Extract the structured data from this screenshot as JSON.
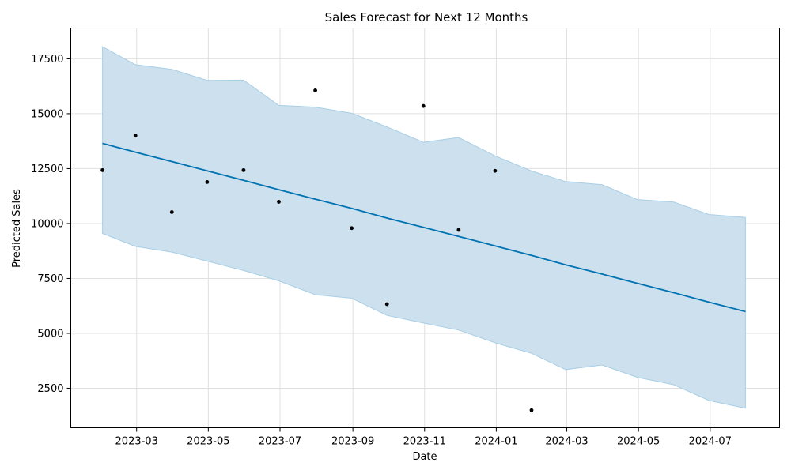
{
  "chart_data": {
    "type": "line",
    "title": "Sales Forecast for Next 12 Months",
    "xlabel": "Date",
    "ylabel": "Predicted Sales",
    "grid": true,
    "x_ticks": [
      "2023-03",
      "2023-05",
      "2023-07",
      "2023-09",
      "2023-11",
      "2024-01",
      "2024-03",
      "2024-05",
      "2024-07"
    ],
    "y_ticks": [
      2500,
      5000,
      7500,
      10000,
      12500,
      15000,
      17500
    ],
    "xlim": [
      "2023-01-04",
      "2024-08-29"
    ],
    "ylim": [
      700,
      18900
    ],
    "forecast": {
      "x": [
        "2023-01-31",
        "2023-02-28",
        "2023-03-31",
        "2023-04-30",
        "2023-05-31",
        "2023-06-30",
        "2023-07-31",
        "2023-08-31",
        "2023-09-30",
        "2023-10-31",
        "2023-11-30",
        "2023-12-31",
        "2024-01-31",
        "2024-02-29",
        "2024-03-31",
        "2024-04-30",
        "2024-05-31",
        "2024-06-30",
        "2024-07-31"
      ],
      "yhat": [
        13650,
        13250,
        12820,
        12400,
        11970,
        11540,
        11110,
        10690,
        10250,
        9830,
        9410,
        8980,
        8550,
        8120,
        7700,
        7280,
        6850,
        6420,
        5990
      ],
      "yhat_upper": [
        18050,
        17230,
        17020,
        16520,
        16530,
        15380,
        15300,
        15020,
        14400,
        13700,
        13920,
        13080,
        12390,
        11910,
        11770,
        11090,
        10980,
        10410,
        10280
      ],
      "yhat_lower": [
        9550,
        8960,
        8700,
        8290,
        7860,
        7390,
        6760,
        6600,
        5820,
        5470,
        5150,
        4570,
        4090,
        3350,
        3560,
        3000,
        2660,
        1940,
        1590
      ]
    },
    "actual": {
      "x": [
        "2023-01-31",
        "2023-02-28",
        "2023-03-31",
        "2023-04-30",
        "2023-05-31",
        "2023-06-30",
        "2023-07-31",
        "2023-08-31",
        "2023-09-30",
        "2023-10-31",
        "2023-11-30",
        "2023-12-31",
        "2024-01-31"
      ],
      "y": [
        12430,
        14000,
        10520,
        11890,
        12430,
        10990,
        16060,
        9790,
        6330,
        15350,
        9710,
        12400,
        1500
      ]
    },
    "colors": {
      "line": "#0072b2",
      "band_fill": "#cce0ee",
      "band_edge": "#a8cfe6",
      "points": "#000000",
      "grid": "#e0e0e0"
    }
  }
}
